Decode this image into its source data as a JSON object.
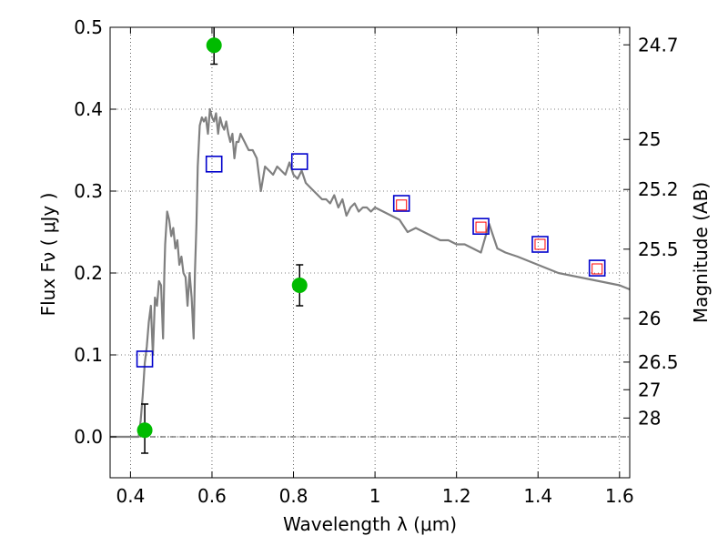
{
  "chart_data": {
    "type": "scatter",
    "xlabel": "Wavelength  λ (μm)",
    "ylabel": "Flux  Fν  ( μJy )",
    "y2label": "Magnitude (AB)",
    "xlim": [
      0.35,
      1.625
    ],
    "ylim": [
      -0.05,
      0.5
    ],
    "grid": true,
    "x_ticks": [
      {
        "value": 0.4,
        "label": "0.4"
      },
      {
        "value": 0.6,
        "label": "0.6"
      },
      {
        "value": 0.8,
        "label": "0.8"
      },
      {
        "value": 1.0,
        "label": "1"
      },
      {
        "value": 1.2,
        "label": "1.2"
      },
      {
        "value": 1.4,
        "label": "1.4"
      },
      {
        "value": 1.6,
        "label": "1.6"
      }
    ],
    "y_ticks": [
      {
        "value": 0.0,
        "label": "0.0"
      },
      {
        "value": 0.1,
        "label": "0.1"
      },
      {
        "value": 0.2,
        "label": "0.2"
      },
      {
        "value": 0.3,
        "label": "0.3"
      },
      {
        "value": 0.4,
        "label": "0.4"
      },
      {
        "value": 0.5,
        "label": "0.5"
      }
    ],
    "y2_ticks": [
      {
        "label": "24.7",
        "flux": 0.4786
      },
      {
        "label": "25",
        "flux": 0.3631
      },
      {
        "label": "25.2",
        "flux": 0.302
      },
      {
        "label": "25.5",
        "flux": 0.2291
      },
      {
        "label": "26",
        "flux": 0.1445
      },
      {
        "label": "26.5",
        "flux": 0.0912
      },
      {
        "label": "27",
        "flux": 0.0575
      },
      {
        "label": "28",
        "flux": 0.0229
      }
    ],
    "series": [
      {
        "type": "line",
        "color": "#808080",
        "x": [
          0.35,
          0.42,
          0.425,
          0.43,
          0.435,
          0.44,
          0.445,
          0.45,
          0.455,
          0.46,
          0.465,
          0.47,
          0.475,
          0.48,
          0.483,
          0.485,
          0.49,
          0.495,
          0.5,
          0.505,
          0.51,
          0.515,
          0.52,
          0.525,
          0.53,
          0.535,
          0.54,
          0.545,
          0.55,
          0.555,
          0.558,
          0.562,
          0.565,
          0.57,
          0.575,
          0.58,
          0.585,
          0.59,
          0.595,
          0.6,
          0.605,
          0.61,
          0.615,
          0.62,
          0.625,
          0.63,
          0.635,
          0.64,
          0.645,
          0.65,
          0.655,
          0.66,
          0.665,
          0.67,
          0.675,
          0.68,
          0.685,
          0.69,
          0.7,
          0.71,
          0.72,
          0.73,
          0.74,
          0.75,
          0.76,
          0.77,
          0.78,
          0.79,
          0.8,
          0.81,
          0.82,
          0.83,
          0.84,
          0.85,
          0.86,
          0.87,
          0.88,
          0.89,
          0.9,
          0.91,
          0.92,
          0.93,
          0.94,
          0.95,
          0.96,
          0.97,
          0.98,
          0.99,
          1.0,
          1.02,
          1.04,
          1.06,
          1.08,
          1.1,
          1.12,
          1.14,
          1.16,
          1.18,
          1.2,
          1.22,
          1.24,
          1.26,
          1.28,
          1.29,
          1.3,
          1.32,
          1.35,
          1.4,
          1.45,
          1.5,
          1.55,
          1.6,
          1.625
        ],
        "y": [
          0.0,
          0.0,
          0.02,
          0.05,
          0.09,
          0.11,
          0.14,
          0.16,
          0.1,
          0.17,
          0.16,
          0.19,
          0.185,
          0.12,
          0.2,
          0.235,
          0.275,
          0.265,
          0.245,
          0.255,
          0.23,
          0.24,
          0.21,
          0.22,
          0.2,
          0.195,
          0.16,
          0.2,
          0.17,
          0.12,
          0.2,
          0.26,
          0.33,
          0.38,
          0.39,
          0.385,
          0.39,
          0.37,
          0.4,
          0.39,
          0.385,
          0.395,
          0.37,
          0.39,
          0.38,
          0.375,
          0.385,
          0.37,
          0.36,
          0.37,
          0.34,
          0.36,
          0.36,
          0.37,
          0.365,
          0.36,
          0.355,
          0.35,
          0.35,
          0.34,
          0.3,
          0.33,
          0.325,
          0.32,
          0.33,
          0.325,
          0.32,
          0.335,
          0.32,
          0.315,
          0.325,
          0.31,
          0.305,
          0.3,
          0.295,
          0.29,
          0.29,
          0.285,
          0.295,
          0.28,
          0.29,
          0.27,
          0.28,
          0.285,
          0.275,
          0.28,
          0.28,
          0.275,
          0.28,
          0.275,
          0.27,
          0.265,
          0.25,
          0.255,
          0.25,
          0.245,
          0.24,
          0.24,
          0.235,
          0.235,
          0.23,
          0.225,
          0.26,
          0.245,
          0.23,
          0.225,
          0.22,
          0.21,
          0.2,
          0.195,
          0.19,
          0.185,
          0.18
        ]
      },
      {
        "type": "scatter",
        "marker": "open-square",
        "color": "#0000cc",
        "x": [
          0.435,
          0.605,
          0.815,
          1.065,
          1.26,
          1.405,
          1.545
        ],
        "y": [
          0.095,
          0.333,
          0.336,
          0.285,
          0.257,
          0.235,
          0.206
        ]
      },
      {
        "type": "scatter",
        "marker": "open-square-small",
        "color": "#ff0000",
        "x": [
          1.065,
          1.26,
          1.405,
          1.545
        ],
        "y": [
          0.283,
          0.256,
          0.235,
          0.205
        ]
      },
      {
        "type": "scatter",
        "marker": "filled-circle",
        "color": "#00bb00",
        "x": [
          0.435,
          0.605,
          0.815
        ],
        "y": [
          0.008,
          0.478,
          0.185
        ],
        "yerr_low": [
          -0.02,
          0.455,
          0.16
        ],
        "yerr_high": [
          0.04,
          0.51,
          0.21
        ]
      }
    ]
  }
}
